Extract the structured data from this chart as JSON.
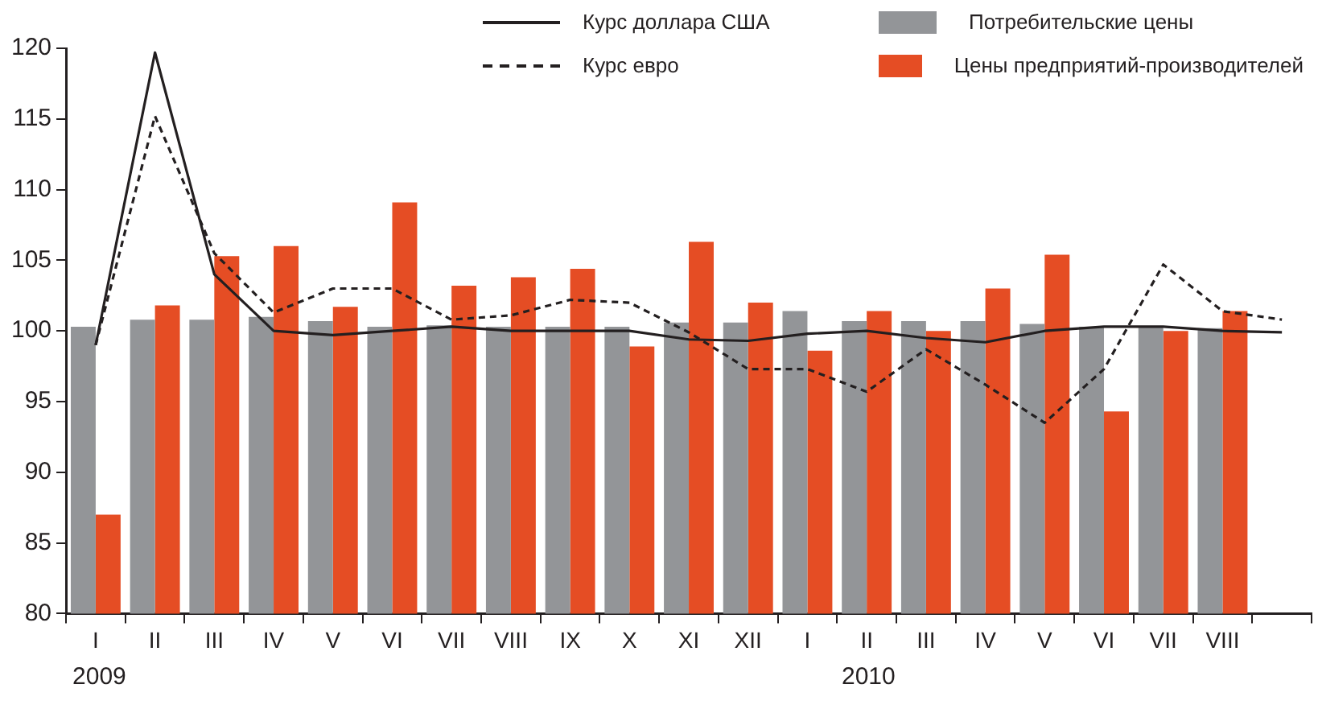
{
  "chart_data": {
    "type": "bar",
    "categories": [
      "I",
      "II",
      "III",
      "IV",
      "V",
      "VI",
      "VII",
      "VIII",
      "IX",
      "X",
      "XI",
      "XII",
      "I",
      "II",
      "III",
      "IV",
      "V",
      "VI",
      "VII",
      "VIII",
      null
    ],
    "series": [
      {
        "name": "Потребительские цены",
        "color": "#939598",
        "values": [
          100.3,
          100.8,
          100.8,
          101.0,
          100.7,
          100.3,
          100.4,
          100.3,
          100.3,
          100.3,
          100.6,
          100.6,
          101.4,
          100.7,
          100.7,
          100.7,
          100.5,
          100.3,
          100.3,
          100.2,
          null
        ]
      },
      {
        "name": "Цены предприятий-производителей",
        "color": "#e54d24",
        "values": [
          87.0,
          101.8,
          105.3,
          106.0,
          101.7,
          109.1,
          103.2,
          103.8,
          104.4,
          98.9,
          106.3,
          102.0,
          98.6,
          101.4,
          100.0,
          103.0,
          105.4,
          94.3,
          100.0,
          101.4,
          null
        ]
      },
      {
        "name": "Курс доллара США",
        "type": "line",
        "color": "#231f20",
        "line_style": "solid",
        "values": [
          99.0,
          119.7,
          104.0,
          100.0,
          99.7,
          100.0,
          100.3,
          100.0,
          100.0,
          100.0,
          99.4,
          99.3,
          99.8,
          100.0,
          99.5,
          99.2,
          100.0,
          100.3,
          100.3,
          100.0,
          99.9
        ]
      },
      {
        "name": "Курс евро",
        "type": "line",
        "color": "#231f20",
        "line_style": "dashed",
        "values": [
          99.0,
          115.2,
          105.5,
          101.3,
          103.0,
          103.0,
          100.8,
          101.1,
          102.2,
          102.0,
          99.9,
          97.3,
          97.3,
          95.7,
          98.7,
          96.2,
          93.5,
          97.3,
          104.7,
          101.4,
          100.8
        ]
      }
    ],
    "ylim": [
      80,
      120
    ],
    "yticks": [
      80,
      85,
      90,
      95,
      100,
      105,
      110,
      115,
      120
    ],
    "grid": false,
    "legend": "top right",
    "marker": "none",
    "annotations": [
      "2009",
      "2010"
    ]
  }
}
